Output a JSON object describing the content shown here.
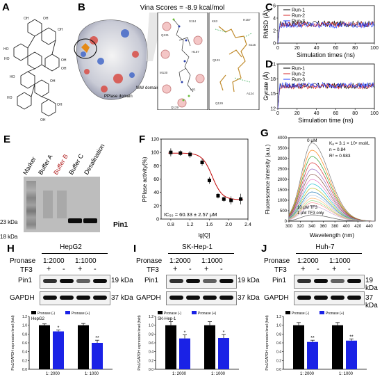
{
  "panels": {
    "A": "A",
    "B": "B",
    "C": "C",
    "D": "D",
    "E": "E",
    "F": "F",
    "G": "G",
    "H": "H",
    "I": "I",
    "J": "J"
  },
  "b": {
    "vina": "Vina Scores = -8.9 kcal/mol",
    "pp_label": "PPIase domain",
    "ww_label": "WW domain"
  },
  "c": {
    "ylabel": "RMSD (Å)",
    "xlabel": "Simulation times (ns)",
    "legend": [
      "Run-1",
      "Run-2",
      "Run-3"
    ],
    "colors": [
      "#000000",
      "#d62728",
      "#1f3cff"
    ],
    "yticks": [
      "0",
      "2",
      "4",
      "6"
    ],
    "xticks": [
      "0",
      "20",
      "40",
      "60",
      "80",
      "100"
    ]
  },
  "d": {
    "ylabel": "Gyrate (Å)",
    "xlabel": "Simulation time (ns)",
    "legend": [
      "Run-1",
      "Run-2",
      "Run-3"
    ],
    "yticks": [
      "12",
      "15",
      "18",
      "21"
    ],
    "xticks": [
      "0",
      "20",
      "40",
      "60",
      "80",
      "100"
    ]
  },
  "e": {
    "lanes": [
      "Marker",
      "Buffer A",
      "Buffer B",
      "Buffer C",
      "Desalination"
    ],
    "lane_colors": [
      "#000000",
      "#000000",
      "#b22222",
      "#000000",
      "#000000"
    ],
    "mw": [
      "23 kDa",
      "18 kDa"
    ],
    "protein": "Pin1"
  },
  "f": {
    "ylabel": "PPIase activity(%)",
    "xlabel": "lg[Q]",
    "ic50": "IC₅₀ = 60.33 ± 2.57 μM",
    "yticks": [
      "0",
      "20",
      "40",
      "60",
      "80",
      "100",
      "120"
    ],
    "xticks": [
      "0.8",
      "1.2",
      "1.6",
      "2.0",
      "2.4"
    ]
  },
  "g": {
    "ylabel": "Fluorescence intensity (a.u.)",
    "xlabel": "Wavelength   (nm)",
    "kd": "Kₐ = 3.1 × 10⁵ mol/L",
    "n": "n = 0.84",
    "r2": "R² = 0.983",
    "zero": "0 μM",
    "tf3a": "10 μM TF3",
    "tf3b": "1 μM TF3 only",
    "yticks": [
      "0",
      "500",
      "1000",
      "1500",
      "2000",
      "2500",
      "3000",
      "3500",
      "4000"
    ],
    "xticks": [
      "300",
      "320",
      "340",
      "360",
      "380",
      "400",
      "420",
      "440"
    ]
  },
  "blots": [
    {
      "panel": "H",
      "cell": "HepG2",
      "pronase": "Pronase",
      "tf3": "TF3",
      "ratios": [
        "1:2000",
        "1:1000"
      ],
      "signs": [
        "+",
        "-",
        "+",
        "-"
      ],
      "pin1": "Pin1",
      "pin1_kda": "19 kDa",
      "gapdh": "GAPDH",
      "gapdh_kda": "37 kDa",
      "legend_minus": "Pronase (-)",
      "legend_plus": "Pronase (+)",
      "chart_title": "HepG2",
      "ylabel": "Pin1/GAPDH expression level (fold)",
      "xcats": [
        "1: 2000",
        "1: 1000"
      ],
      "sig": [
        "*",
        "**"
      ],
      "yticks": [
        "0.0",
        "0.2",
        "0.4",
        "0.6",
        "0.8",
        "1.0",
        "1.2"
      ]
    },
    {
      "panel": "I",
      "cell": "SK-Hep-1",
      "pronase": "Pronase",
      "tf3": "TF3",
      "ratios": [
        "1:2000",
        "1:1000"
      ],
      "signs": [
        "+",
        "-",
        "+",
        "-"
      ],
      "pin1": "Pin1",
      "pin1_kda": "19 kDa",
      "gapdh": "GAPDH",
      "gapdh_kda": "37 kDa",
      "legend_minus": "Pronase (-)",
      "legend_plus": "Pronase (+)",
      "chart_title": "SK-Hep-1",
      "ylabel": "Pin1/GAPDH expression level (fold)",
      "xcats": [
        "1: 2000",
        "1: 1000"
      ],
      "sig": [
        "*",
        "*"
      ],
      "yticks": [
        "0.0",
        "0.2",
        "0.4",
        "0.6",
        "0.8",
        "1.0",
        "1.2"
      ]
    },
    {
      "panel": "J",
      "cell": "Huh-7",
      "pronase": "Pronase",
      "tf3": "TF3",
      "ratios": [
        "1:2000",
        "1:1000"
      ],
      "signs": [
        "+",
        "-",
        "+",
        "-"
      ],
      "pin1": "Pin1",
      "pin1_kda": "19 kDa",
      "gapdh": "GAPDH",
      "gapdh_kda": "37 kDa",
      "legend_minus": "Pronase (-)",
      "legend_plus": "Pronase (+)",
      "chart_title": "",
      "ylabel": "Pin1/GAPDH expression level (fold)",
      "xcats": [
        "1: 2000",
        "1: 1000"
      ],
      "sig": [
        "**",
        "**"
      ],
      "yticks": [
        "0.0",
        "0.2",
        "0.4",
        "0.6",
        "0.8",
        "1.0",
        "1.2"
      ]
    }
  ],
  "chart_data": [
    {
      "type": "line",
      "id": "C",
      "xlabel": "Simulation times (ns)",
      "ylabel": "RMSD (Å)",
      "xlim": [
        0,
        100
      ],
      "ylim": [
        0,
        6
      ],
      "series": [
        {
          "name": "Run-1",
          "mean": 3.1
        },
        {
          "name": "Run-2",
          "mean": 3.0
        },
        {
          "name": "Run-3",
          "mean": 2.9
        }
      ]
    },
    {
      "type": "line",
      "id": "D",
      "xlabel": "Simulation time (ns)",
      "ylabel": "Gyrate (Å)",
      "xlim": [
        0,
        100
      ],
      "ylim": [
        12,
        21
      ],
      "series": [
        {
          "name": "Run-1",
          "mean": 16.6
        },
        {
          "name": "Run-2",
          "mean": 16.5
        },
        {
          "name": "Run-3",
          "mean": 16.7
        }
      ]
    },
    {
      "type": "scatter",
      "id": "F",
      "xlabel": "lg[Q]",
      "ylabel": "PPIase activity(%)",
      "xlim": [
        0.6,
        2.4
      ],
      "ylim": [
        0,
        120
      ],
      "x": [
        0.8,
        1.0,
        1.2,
        1.45,
        1.6,
        1.78,
        1.9,
        2.05,
        2.25
      ],
      "y": [
        100,
        99,
        97,
        85,
        58,
        35,
        30,
        28,
        30
      ],
      "err": [
        6,
        4,
        5,
        5,
        5,
        4,
        4,
        6,
        8
      ]
    },
    {
      "type": "line",
      "id": "G",
      "xlabel": "Wavelength   (nm)",
      "ylabel": "Fluorescence intensity (a.u.)",
      "xlim": [
        300,
        450
      ],
      "ylim": [
        0,
        4000
      ],
      "peak_x": 340,
      "peaks": [
        3750,
        3400,
        3100,
        2800,
        2500,
        2250,
        2000,
        1780,
        1580,
        1400,
        1240,
        1100,
        980,
        880,
        720,
        300
      ]
    },
    {
      "type": "bar",
      "id": "H",
      "categories": [
        "1: 2000",
        "1: 1000"
      ],
      "series": [
        {
          "name": "Pronase (-)",
          "values": [
            1.0,
            1.0
          ],
          "err": [
            0.03,
            0.04
          ]
        },
        {
          "name": "Pronase (+)",
          "values": [
            0.86,
            0.6
          ],
          "err": [
            0.03,
            0.06
          ]
        }
      ],
      "ylim": [
        0,
        1.2
      ]
    },
    {
      "type": "bar",
      "id": "I",
      "categories": [
        "1: 2000",
        "1: 1000"
      ],
      "series": [
        {
          "name": "Pronase (-)",
          "values": [
            1.0,
            1.0
          ],
          "err": [
            0.08,
            0.08
          ]
        },
        {
          "name": "Pronase (+)",
          "values": [
            0.7,
            0.71
          ],
          "err": [
            0.08,
            0.08
          ]
        }
      ],
      "ylim": [
        0,
        1.2
      ]
    },
    {
      "type": "bar",
      "id": "J",
      "categories": [
        "1: 2000",
        "1: 1000"
      ],
      "series": [
        {
          "name": "Pronase (-)",
          "values": [
            1.0,
            1.0
          ],
          "err": [
            0.06,
            0.06
          ]
        },
        {
          "name": "Pronase (+)",
          "values": [
            0.62,
            0.65
          ],
          "err": [
            0.04,
            0.04
          ]
        }
      ],
      "ylim": [
        0,
        1.2
      ]
    }
  ]
}
